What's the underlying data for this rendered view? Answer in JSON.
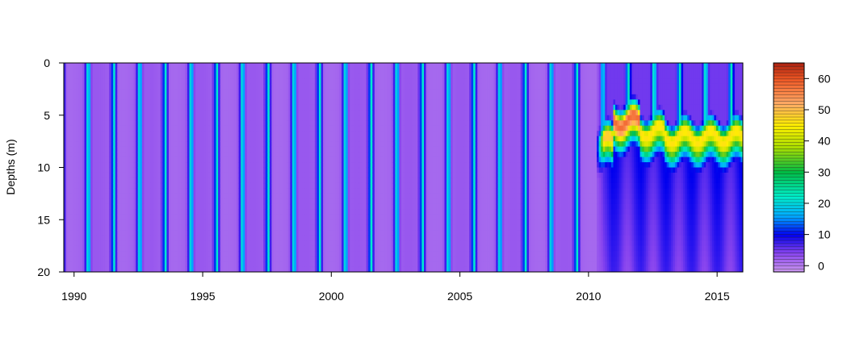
{
  "chart_data": {
    "type": "heatmap",
    "title": "",
    "xlabel": "",
    "ylabel": "Depths (m)",
    "xlim": [
      1989.6,
      2016.0
    ],
    "ylim": [
      20,
      0
    ],
    "x_ticks": [
      1990,
      1995,
      2000,
      2005,
      2010,
      2015
    ],
    "y_ticks": [
      0,
      5,
      10,
      15,
      20
    ],
    "colorbar": {
      "range": [
        -2,
        65
      ],
      "ticks": [
        0,
        10,
        20,
        30,
        40,
        50,
        60
      ],
      "stops": [
        {
          "value": -2,
          "color": "#cc99ee"
        },
        {
          "value": 4,
          "color": "#8844ee"
        },
        {
          "value": 10,
          "color": "#0000ee"
        },
        {
          "value": 16,
          "color": "#00aaff"
        },
        {
          "value": 22,
          "color": "#00eecc"
        },
        {
          "value": 30,
          "color": "#00bb44"
        },
        {
          "value": 38,
          "color": "#aadd00"
        },
        {
          "value": 45,
          "color": "#ffee00"
        },
        {
          "value": 52,
          "color": "#ffaa66"
        },
        {
          "value": 60,
          "color": "#ee5522"
        },
        {
          "value": 65,
          "color": "#aa2211"
        }
      ]
    },
    "pattern": {
      "description_free_values": true,
      "regime_change_year": 2010.3,
      "annual_bloom_center_offset": 0.9,
      "pre_change_background": 2,
      "pre_change_bloom_peak": 22,
      "post_change_surface_value": 5,
      "post_change_bloom_depth": [
        7.5,
        5.5,
        6.5,
        7,
        7,
        7
      ],
      "post_change_peak": 58,
      "post_change_deep_value": 9
    }
  }
}
